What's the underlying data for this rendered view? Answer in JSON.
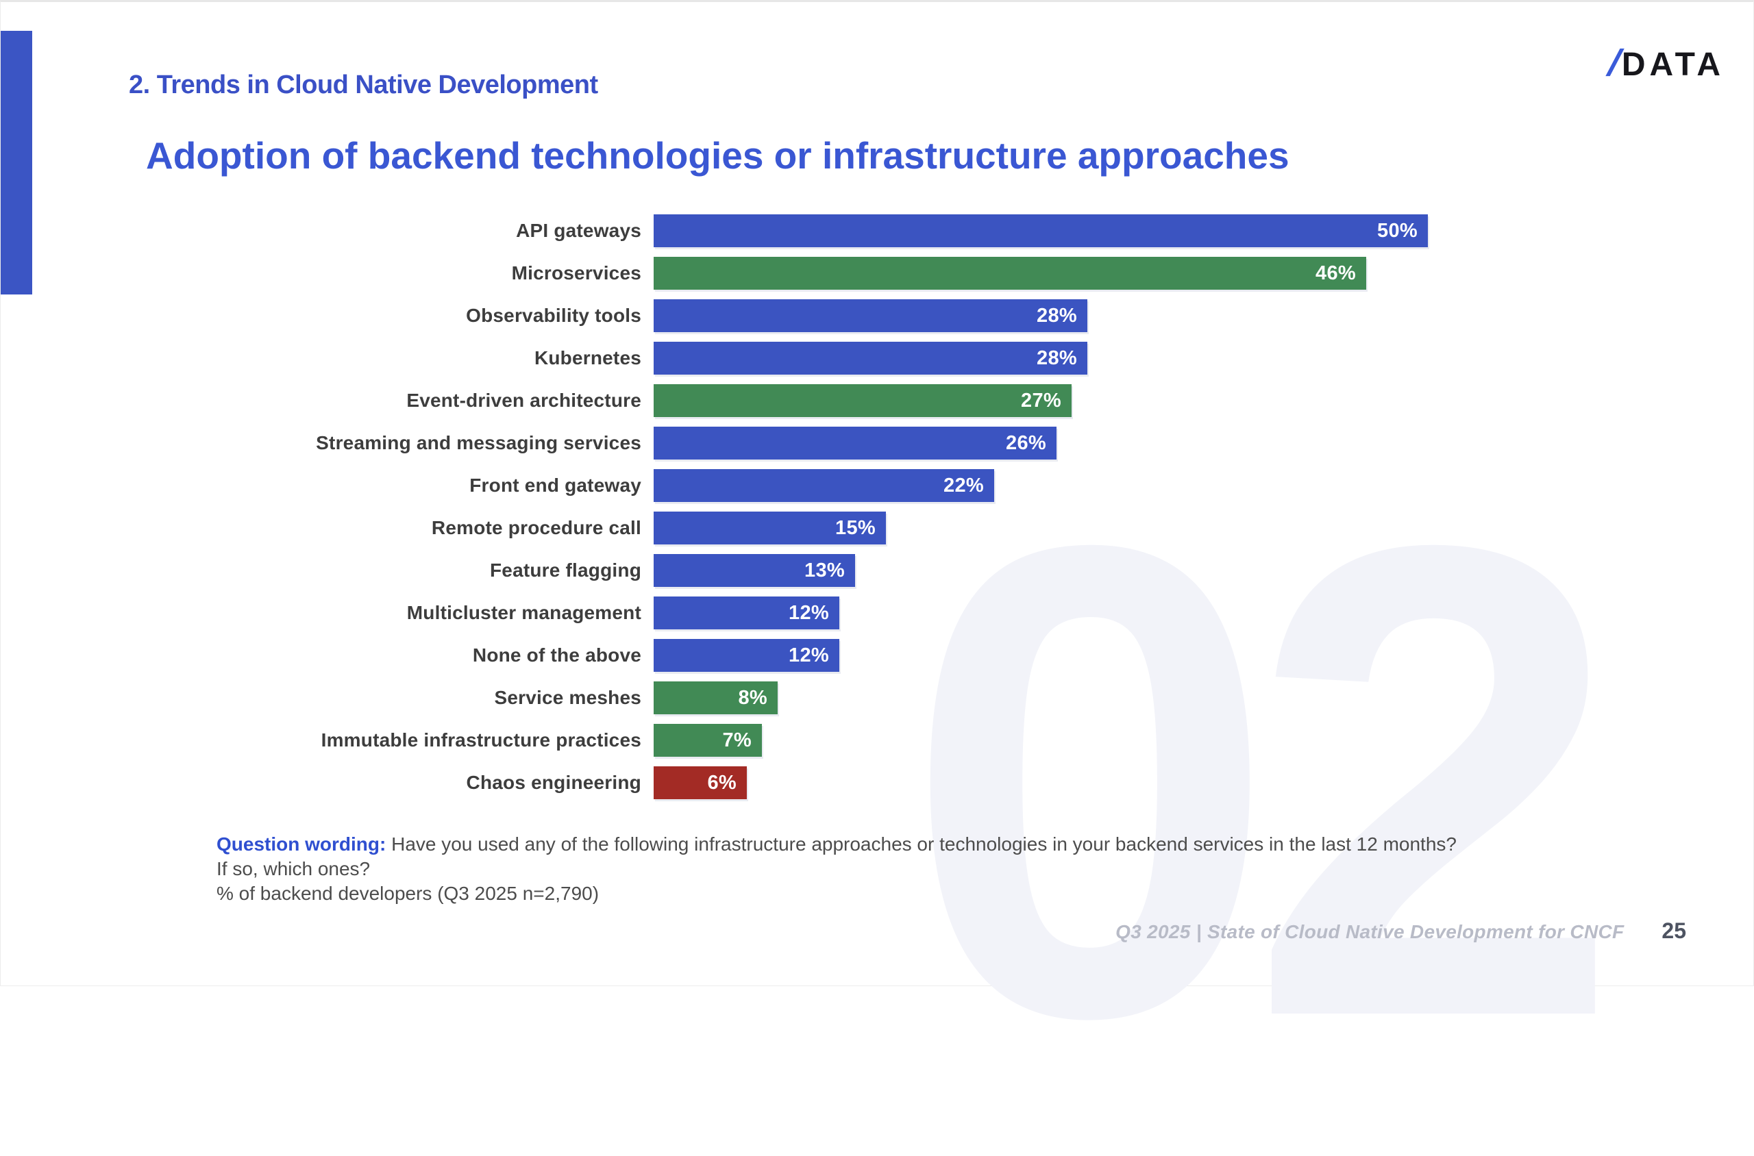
{
  "slide": {
    "section_header": "2. Trends in Cloud Native Development",
    "title": "Adoption of backend technologies or infrastructure approaches",
    "logo": {
      "slash": "/",
      "word": "DATA"
    },
    "watermark": "02",
    "footnote": {
      "label": "Question wording:",
      "line1": " Have you used any of the following infrastructure approaches or technologies in your backend services in the last 12 months?",
      "line2": "If so, which ones?",
      "line3": "% of backend developers (Q3 2025 n=2,790)"
    },
    "footer": {
      "source": "Q3 2025 | State of Cloud Native Development for CNCF",
      "page": "25"
    }
  },
  "colors": {
    "blue": "#3b54c1",
    "green": "#418a55",
    "red": "#a32b25",
    "accent_blue": "#3a57d3",
    "watermark_gray": "#f2f3f9"
  },
  "chart_data": {
    "type": "bar",
    "orientation": "horizontal",
    "title": "Adoption of backend technologies or infrastructure approaches",
    "xlabel": "% of backend developers",
    "ylabel": "",
    "axis_max": 50,
    "grid": false,
    "legend": false,
    "categories": [
      "API gateways",
      "Microservices",
      "Observability tools",
      "Kubernetes",
      "Event-driven architecture",
      "Streaming and messaging services",
      "Front end gateway",
      "Remote procedure call",
      "Feature flagging",
      "Multicluster management",
      "None of the above",
      "Service meshes",
      "Immutable infrastructure practices",
      "Chaos engineering"
    ],
    "values": [
      50,
      46,
      28,
      28,
      27,
      26,
      22,
      15,
      13,
      12,
      12,
      8,
      7,
      6
    ],
    "value_labels": [
      "50%",
      "46%",
      "28%",
      "28%",
      "27%",
      "26%",
      "22%",
      "15%",
      "13%",
      "12%",
      "12%",
      "8%",
      "7%",
      "6%"
    ],
    "bar_colors": [
      "blue",
      "green",
      "blue",
      "blue",
      "green",
      "blue",
      "blue",
      "blue",
      "blue",
      "blue",
      "blue",
      "green",
      "green",
      "red"
    ]
  }
}
